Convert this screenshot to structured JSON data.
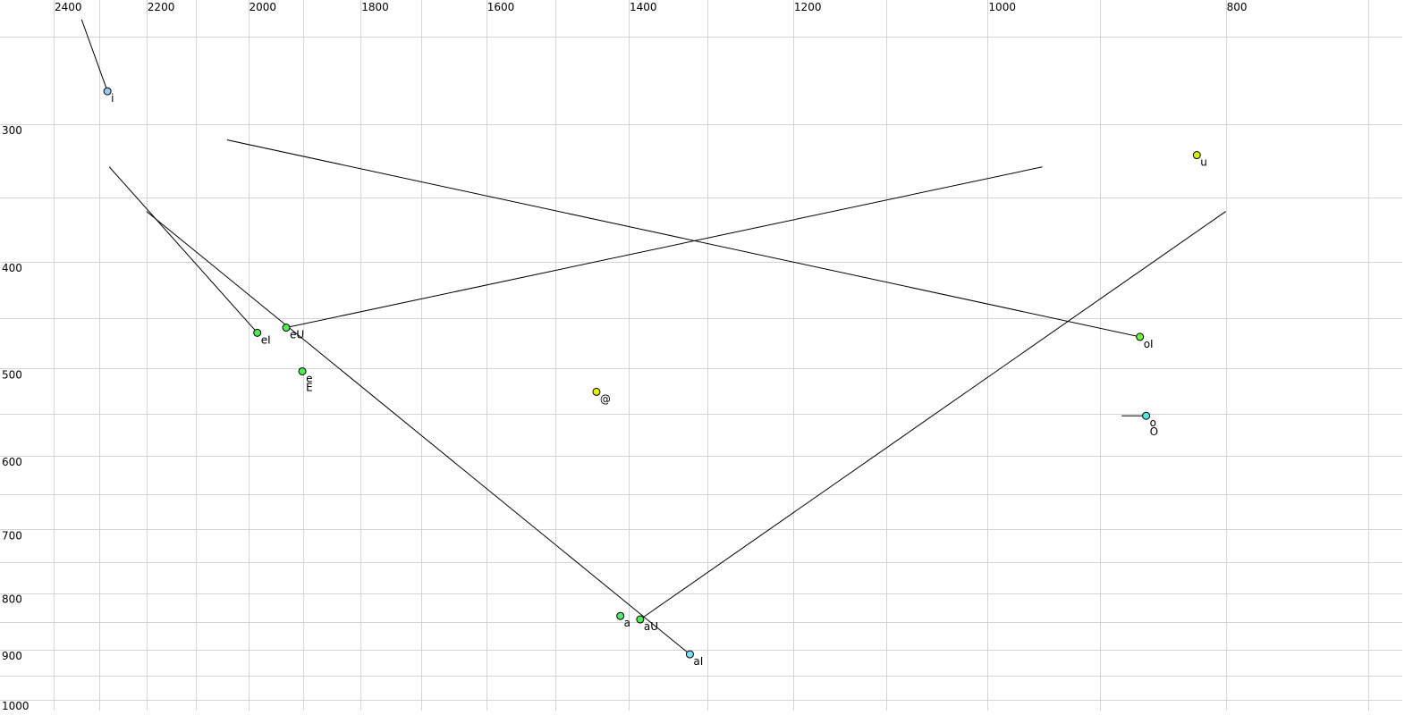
{
  "chart_data": {
    "type": "scatter",
    "title": "",
    "xlabel": "",
    "ylabel": "",
    "x_scale": "log",
    "y_scale": "log",
    "x_reversed": true,
    "xlim": [
      2530,
      678
    ],
    "ylim": [
      231,
      1010
    ],
    "grid": true,
    "x_ticks": [
      2400,
      2200,
      2000,
      1800,
      1600,
      1400,
      1200,
      1000,
      800
    ],
    "x_gridlines": [
      2400,
      2300,
      2200,
      2100,
      2000,
      1900,
      1800,
      1700,
      1600,
      1500,
      1400,
      1300,
      1200,
      1100,
      1000,
      900,
      800,
      700
    ],
    "y_ticks": [
      300,
      400,
      500,
      600,
      700,
      800,
      900,
      1000
    ],
    "y_gridlines": [
      250,
      300,
      350,
      400,
      450,
      500,
      550,
      600,
      650,
      700,
      750,
      800,
      850,
      900,
      950,
      1000
    ],
    "points": [
      {
        "labels": [
          "i"
        ],
        "x": 2282,
        "y": 280,
        "color": "#9cc4f4"
      },
      {
        "labels": [
          "u"
        ],
        "x": 822,
        "y": 320,
        "color": "#d4f000"
      },
      {
        "labels": [
          "eI"
        ],
        "x": 1983,
        "y": 464,
        "color": "#50ec50"
      },
      {
        "labels": [
          "eU"
        ],
        "x": 1930,
        "y": 459,
        "color": "#50ec50"
      },
      {
        "labels": [
          "e",
          "E"
        ],
        "x": 1901,
        "y": 503,
        "color": "#50ec50"
      },
      {
        "labels": [
          "@"
        ],
        "x": 1443,
        "y": 525,
        "color": "#e4f000"
      },
      {
        "labels": [
          "oI"
        ],
        "x": 867,
        "y": 468,
        "color": "#70f040"
      },
      {
        "labels": [
          "o",
          "O"
        ],
        "x": 862,
        "y": 552,
        "color": "#50e8d8"
      },
      {
        "labels": [
          "a"
        ],
        "x": 1411,
        "y": 839,
        "color": "#50ec70"
      },
      {
        "labels": [
          "aU"
        ],
        "x": 1385,
        "y": 845,
        "color": "#50ec50"
      },
      {
        "labels": [
          "aI"
        ],
        "x": 1322,
        "y": 909,
        "color": "#80e0f0"
      }
    ],
    "trajectories": [
      {
        "from": [
          2338,
          241
        ],
        "to": [
          2282,
          280
        ]
      },
      {
        "from": [
          2040,
          310
        ],
        "to": [
          867,
          468
        ]
      },
      {
        "from": [
          950,
          328
        ],
        "to": [
          1930,
          459
        ]
      },
      {
        "from": [
          2278,
          328
        ],
        "to": [
          1983,
          464
        ]
      },
      {
        "from": [
          2200,
          360
        ],
        "to": [
          1322,
          909
        ]
      },
      {
        "from": [
          800,
          360
        ],
        "to": [
          1385,
          845
        ]
      },
      {
        "from": [
          882,
          552
        ],
        "to": [
          862,
          552
        ]
      }
    ]
  }
}
